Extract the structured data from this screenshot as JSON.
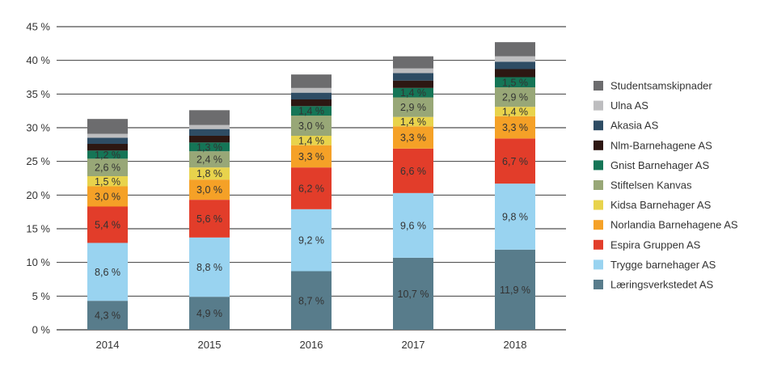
{
  "chart_data": {
    "type": "bar",
    "stacked": true,
    "title": "",
    "xlabel": "",
    "ylabel": "",
    "ylim": [
      0,
      45
    ],
    "yticks": [
      0,
      5,
      10,
      15,
      20,
      25,
      30,
      35,
      40,
      45
    ],
    "ytick_labels": [
      "0 %",
      "5 %",
      "10 %",
      "15 %",
      "20 %",
      "25 %",
      "30 %",
      "35 %",
      "40 %",
      "45 %"
    ],
    "grid": true,
    "legend_position": "right",
    "categories": [
      "2014",
      "2015",
      "2016",
      "2017",
      "2018"
    ],
    "series": [
      {
        "name": "Læringsverkstedet AS",
        "color": "#587c8b",
        "values": [
          4.3,
          4.9,
          8.7,
          10.7,
          11.9
        ],
        "labels": [
          "4,3 %",
          "4,9 %",
          "8,7 %",
          "10,7 %",
          "11,9 %"
        ]
      },
      {
        "name": "Trygge barnehager AS",
        "color": "#99d3f0",
        "values": [
          8.6,
          8.8,
          9.2,
          9.6,
          9.8
        ],
        "labels": [
          "8,6 %",
          "8,8 %",
          "9,2 %",
          "9,6 %",
          "9,8 %"
        ]
      },
      {
        "name": "Espira Gruppen AS",
        "color": "#e23d2a",
        "values": [
          5.4,
          5.6,
          6.2,
          6.6,
          6.7
        ],
        "labels": [
          "5,4 %",
          "5,6 %",
          "6,2 %",
          "6,6 %",
          "6,7 %"
        ]
      },
      {
        "name": "Norlandia Barnehagene AS",
        "color": "#f5a127",
        "values": [
          3.0,
          3.0,
          3.3,
          3.3,
          3.3
        ],
        "labels": [
          "3,0 %",
          "3,0 %",
          "3,3 %",
          "3,3 %",
          "3,3 %"
        ]
      },
      {
        "name": "Kidsa Barnehager AS",
        "color": "#e8d34c",
        "values": [
          1.5,
          1.8,
          1.4,
          1.4,
          1.4
        ],
        "labels": [
          "1,5 %",
          "1,8 %",
          "1,4 %",
          "1,4 %",
          "1,4 %"
        ]
      },
      {
        "name": "Stiftelsen Kanvas",
        "color": "#98a777",
        "values": [
          2.6,
          2.4,
          3.0,
          2.9,
          2.9
        ],
        "labels": [
          "2,6 %",
          "2,4 %",
          "3,0 %",
          "2,9 %",
          "2,9 %"
        ]
      },
      {
        "name": "Gnist Barnehager AS",
        "color": "#157556",
        "values": [
          1.2,
          1.3,
          1.4,
          1.4,
          1.5
        ],
        "labels": [
          "1,2 %",
          "1,3 %",
          "1,4 %",
          "1,4 %",
          "1,5 %"
        ]
      },
      {
        "name": "Nlm-Barnehagene AS",
        "color": "#2d1712",
        "values": [
          1.0,
          1.0,
          1.0,
          1.1,
          1.2
        ],
        "labels": [
          "",
          "",
          "",
          "",
          ""
        ]
      },
      {
        "name": "Akasia AS",
        "color": "#2e4c64",
        "values": [
          0.9,
          1.0,
          1.0,
          1.1,
          1.1
        ],
        "labels": [
          "",
          "",
          "",
          "",
          ""
        ]
      },
      {
        "name": "Ulna AS",
        "color": "#bdbdbf",
        "values": [
          0.6,
          0.6,
          0.7,
          0.7,
          0.8
        ],
        "labels": [
          "",
          "",
          "",
          "",
          ""
        ]
      },
      {
        "name": "Studentsamskipnader",
        "color": "#6c6c6e",
        "values": [
          2.2,
          2.2,
          2.0,
          1.8,
          2.1
        ],
        "labels": [
          "",
          "",
          "",
          "",
          ""
        ]
      }
    ],
    "axis_color": "#333333",
    "grid_color": "#222222",
    "label_color": "#333333",
    "tick_label_color": "#333333"
  }
}
